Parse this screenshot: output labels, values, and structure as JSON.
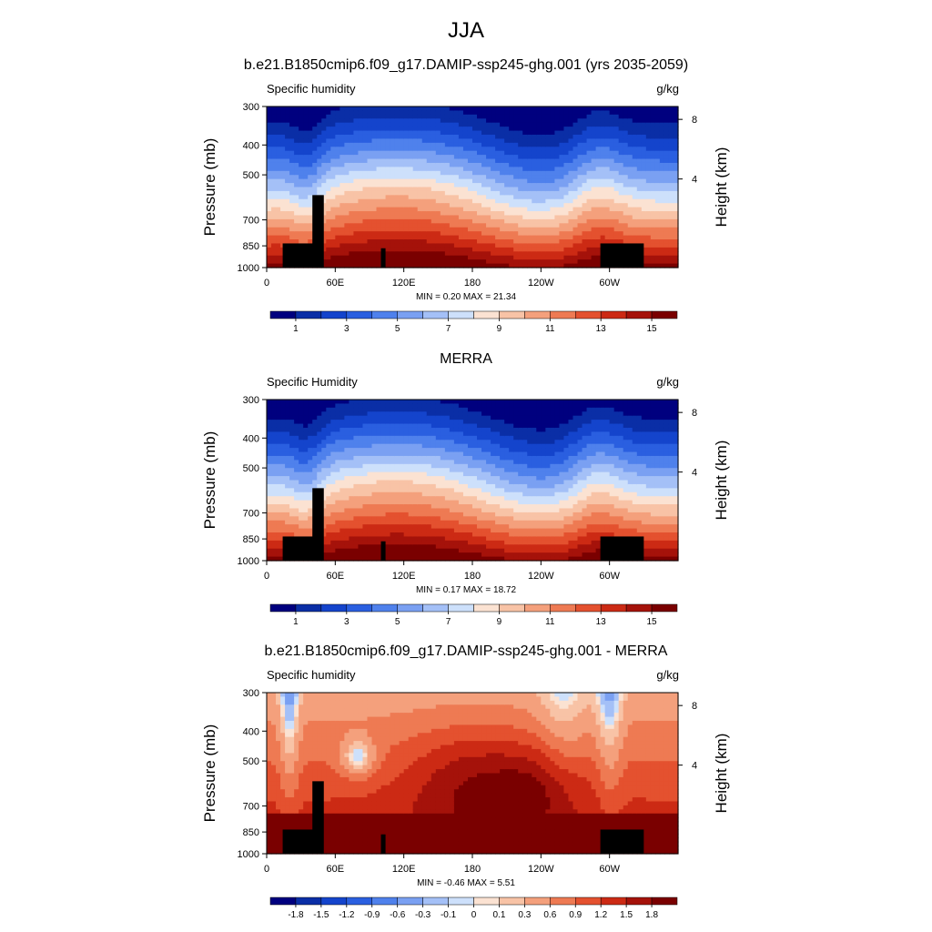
{
  "page": {
    "title": "JJA"
  },
  "chart_data": [
    {
      "type": "heatmap",
      "title": "b.e21.B1850cmip6.f09_g17.DAMIP-ssp245-ghg.001 (yrs 2035-2059)",
      "left_label": "Specific humidity",
      "units": "g/kg",
      "ylabel": "Pressure (mb)",
      "ylabel_right": "Height (km)",
      "yticks": [
        "300",
        "400",
        "500",
        "700",
        "850",
        "1000"
      ],
      "yticks_right": [
        "8",
        "4"
      ],
      "xticks": [
        "0",
        "60E",
        "120E",
        "180",
        "120W",
        "60W"
      ],
      "stats": "MIN =   0.20  MAX =  21.34",
      "min": 0.2,
      "max": 21.34,
      "colorbar_labels": [
        "1",
        "3",
        "5",
        "7",
        "9",
        "11",
        "13",
        "15"
      ],
      "colorbar_levels": [
        1,
        2,
        3,
        4,
        5,
        6,
        7,
        8,
        9,
        10,
        11,
        12,
        13,
        14,
        15
      ]
    },
    {
      "type": "heatmap",
      "title": "MERRA",
      "left_label": "Specific Humidity",
      "units": "g/kg",
      "ylabel": "Pressure (mb)",
      "ylabel_right": "Height (km)",
      "yticks": [
        "300",
        "400",
        "500",
        "700",
        "850",
        "1000"
      ],
      "yticks_right": [
        "8",
        "4"
      ],
      "xticks": [
        "0",
        "60E",
        "120E",
        "180",
        "120W",
        "60W"
      ],
      "stats": "MIN =   0.17  MAX =  18.72",
      "min": 0.17,
      "max": 18.72,
      "colorbar_labels": [
        "1",
        "3",
        "5",
        "7",
        "9",
        "11",
        "13",
        "15"
      ],
      "colorbar_levels": [
        1,
        2,
        3,
        4,
        5,
        6,
        7,
        8,
        9,
        10,
        11,
        12,
        13,
        14,
        15
      ]
    },
    {
      "type": "heatmap",
      "title": "b.e21.B1850cmip6.f09_g17.DAMIP-ssp245-ghg.001 - MERRA",
      "left_label": "Specific humidity",
      "units": "g/kg",
      "ylabel": "Pressure (mb)",
      "ylabel_right": "Height (km)",
      "yticks": [
        "300",
        "400",
        "500",
        "700",
        "850",
        "1000"
      ],
      "yticks_right": [
        "8",
        "4"
      ],
      "xticks": [
        "0",
        "60E",
        "120E",
        "180",
        "120W",
        "60W"
      ],
      "stats": "MIN =  -0.46  MAX =   5.51",
      "min": -0.46,
      "max": 5.51,
      "colorbar_labels": [
        "-1.8",
        "-1.5",
        "-1.2",
        "-0.9",
        "-0.6",
        "-0.3",
        "-0.1",
        "0",
        "0.1",
        "0.3",
        "0.6",
        "0.9",
        "1.2",
        "1.5",
        "1.8"
      ],
      "colorbar_levels": [
        -1.8,
        -1.5,
        -1.2,
        -0.9,
        -0.6,
        -0.3,
        -0.1,
        0,
        0.1,
        0.3,
        0.6,
        0.9,
        1.2,
        1.5,
        1.8
      ]
    }
  ],
  "colors": {
    "palette": [
      "#00007f",
      "#0a2ea6",
      "#1444cc",
      "#2a5fe0",
      "#4f81ec",
      "#7aa0f2",
      "#a4c0f7",
      "#cde0fb",
      "#fbe2d2",
      "#f8c3a6",
      "#f4a07c",
      "#ee7a53",
      "#e4512f",
      "#cc2a14",
      "#a5120a",
      "#7a0000"
    ]
  }
}
